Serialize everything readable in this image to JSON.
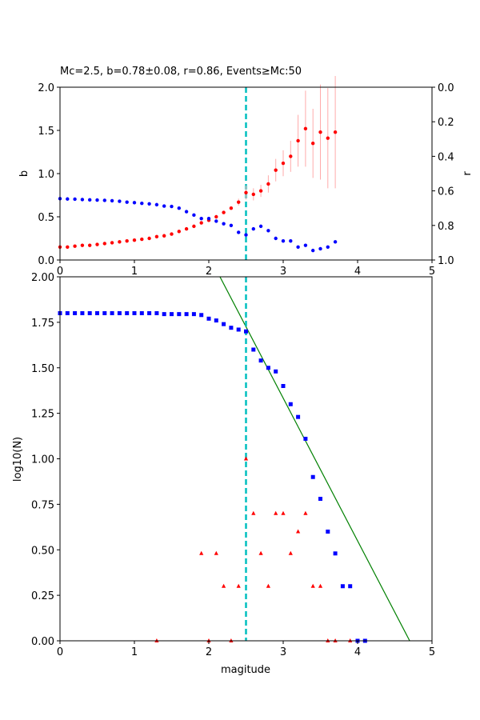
{
  "colors": {
    "b_series": "#ff0000",
    "b_error": "#ffaaaa",
    "r_series": "#0000ff",
    "mc_line": "#00bfbf",
    "fit_line": "#008000",
    "cumulative": "#0000ff",
    "non_cumulative": "#ff0000"
  },
  "chart_data": [
    {
      "type": "scatter",
      "title": "Mc=2.5, b=0.78±0.08, r=0.86, Events≥Mc:50",
      "xlabel": "",
      "ylabel": "b",
      "ylabel_right": "r",
      "xlim": [
        0,
        5
      ],
      "ylim": [
        0,
        2
      ],
      "ylim_right": [
        1,
        0
      ],
      "xticks": [
        "0",
        "1",
        "2",
        "3",
        "4",
        "5"
      ],
      "yticks": [
        "0.0",
        "0.5",
        "1.0",
        "1.5",
        "2.0"
      ],
      "yticks_right": [
        "0.0",
        "0.2",
        "0.4",
        "0.6",
        "0.8",
        "1.0"
      ],
      "grid": false,
      "mc": 2.5,
      "x": [
        0,
        0.1,
        0.2,
        0.3,
        0.4,
        0.5,
        0.6,
        0.7,
        0.8,
        0.9,
        1.0,
        1.1,
        1.2,
        1.3,
        1.4,
        1.5,
        1.6,
        1.7,
        1.8,
        1.9,
        2.0,
        2.1,
        2.2,
        2.3,
        2.4,
        2.5,
        2.6,
        2.7,
        2.8,
        2.9,
        3.0,
        3.1,
        3.2,
        3.3,
        3.4,
        3.5,
        3.6,
        3.7
      ],
      "series": [
        {
          "axis": "left",
          "values": [
            0.15,
            0.15,
            0.16,
            0.17,
            0.17,
            0.18,
            0.19,
            0.2,
            0.21,
            0.22,
            0.23,
            0.24,
            0.25,
            0.27,
            0.28,
            0.3,
            0.33,
            0.36,
            0.39,
            0.43,
            0.46,
            0.5,
            0.55,
            0.6,
            0.67,
            0.78,
            0.76,
            0.8,
            0.88,
            1.04,
            1.12,
            1.2,
            1.38,
            1.52,
            1.35,
            1.48,
            1.41,
            1.48
          ],
          "errors": [
            0,
            0,
            0,
            0,
            0,
            0,
            0,
            0,
            0,
            0,
            0,
            0,
            0,
            0,
            0,
            0,
            0,
            0,
            0,
            0,
            0,
            0,
            0.01,
            0.02,
            0.04,
            0.08,
            0.07,
            0.07,
            0.1,
            0.13,
            0.15,
            0.18,
            0.3,
            0.44,
            0.4,
            0.55,
            0.58,
            0.65
          ]
        },
        {
          "axis": "right",
          "values": [
            0.645,
            0.647,
            0.648,
            0.65,
            0.652,
            0.653,
            0.655,
            0.657,
            0.66,
            0.665,
            0.668,
            0.672,
            0.675,
            0.68,
            0.688,
            0.69,
            0.7,
            0.72,
            0.74,
            0.76,
            0.76,
            0.775,
            0.79,
            0.8,
            0.84,
            0.855,
            0.82,
            0.805,
            0.83,
            0.875,
            0.89,
            0.89,
            0.925,
            0.915,
            0.945,
            0.935,
            0.925,
            0.895
          ]
        }
      ]
    },
    {
      "type": "scatter",
      "title": "",
      "xlabel": "magitude",
      "ylabel": "log10(N)",
      "xlim": [
        0,
        5
      ],
      "ylim": [
        0,
        2
      ],
      "xticks": [
        "0",
        "1",
        "2",
        "3",
        "4",
        "5"
      ],
      "yticks": [
        "0.00",
        "0.25",
        "0.50",
        "0.75",
        "1.00",
        "1.25",
        "1.50",
        "1.75",
        "2.00"
      ],
      "grid": false,
      "mc": 2.5,
      "fit_line": {
        "x": [
          2.15,
          4.7
        ],
        "y": [
          2.0,
          0.0
        ]
      },
      "series": [
        {
          "marker": "square",
          "x": [
            0,
            0.1,
            0.2,
            0.3,
            0.4,
            0.5,
            0.6,
            0.7,
            0.8,
            0.9,
            1.0,
            1.1,
            1.2,
            1.3,
            1.4,
            1.5,
            1.6,
            1.7,
            1.8,
            1.9,
            2.0,
            2.1,
            2.2,
            2.3,
            2.4,
            2.5,
            2.6,
            2.7,
            2.8,
            2.9,
            3.0,
            3.1,
            3.2,
            3.3,
            3.4,
            3.5,
            3.6,
            3.7,
            3.8,
            3.9,
            4.0,
            4.1
          ],
          "values": [
            1.8,
            1.8,
            1.8,
            1.8,
            1.8,
            1.8,
            1.8,
            1.8,
            1.8,
            1.8,
            1.8,
            1.8,
            1.8,
            1.8,
            1.795,
            1.795,
            1.795,
            1.795,
            1.795,
            1.79,
            1.77,
            1.76,
            1.74,
            1.72,
            1.71,
            1.7,
            1.6,
            1.54,
            1.5,
            1.48,
            1.4,
            1.3,
            1.23,
            1.11,
            0.9,
            0.78,
            0.6,
            0.48,
            0.3,
            0.3,
            0.0,
            0.0
          ]
        },
        {
          "marker": "triangle",
          "x": [
            1.3,
            1.9,
            2.0,
            2.1,
            2.2,
            2.3,
            2.4,
            2.5,
            2.6,
            2.7,
            2.8,
            2.9,
            3.0,
            3.1,
            3.2,
            3.3,
            3.4,
            3.5,
            3.6,
            3.7,
            3.9
          ],
          "values": [
            0.0,
            0.48,
            0.0,
            0.48,
            0.3,
            0.0,
            0.3,
            1.0,
            0.7,
            0.48,
            0.3,
            0.7,
            0.7,
            0.48,
            0.6,
            0.7,
            0.3,
            0.3,
            0.0,
            0.0,
            0.0
          ]
        }
      ]
    }
  ]
}
